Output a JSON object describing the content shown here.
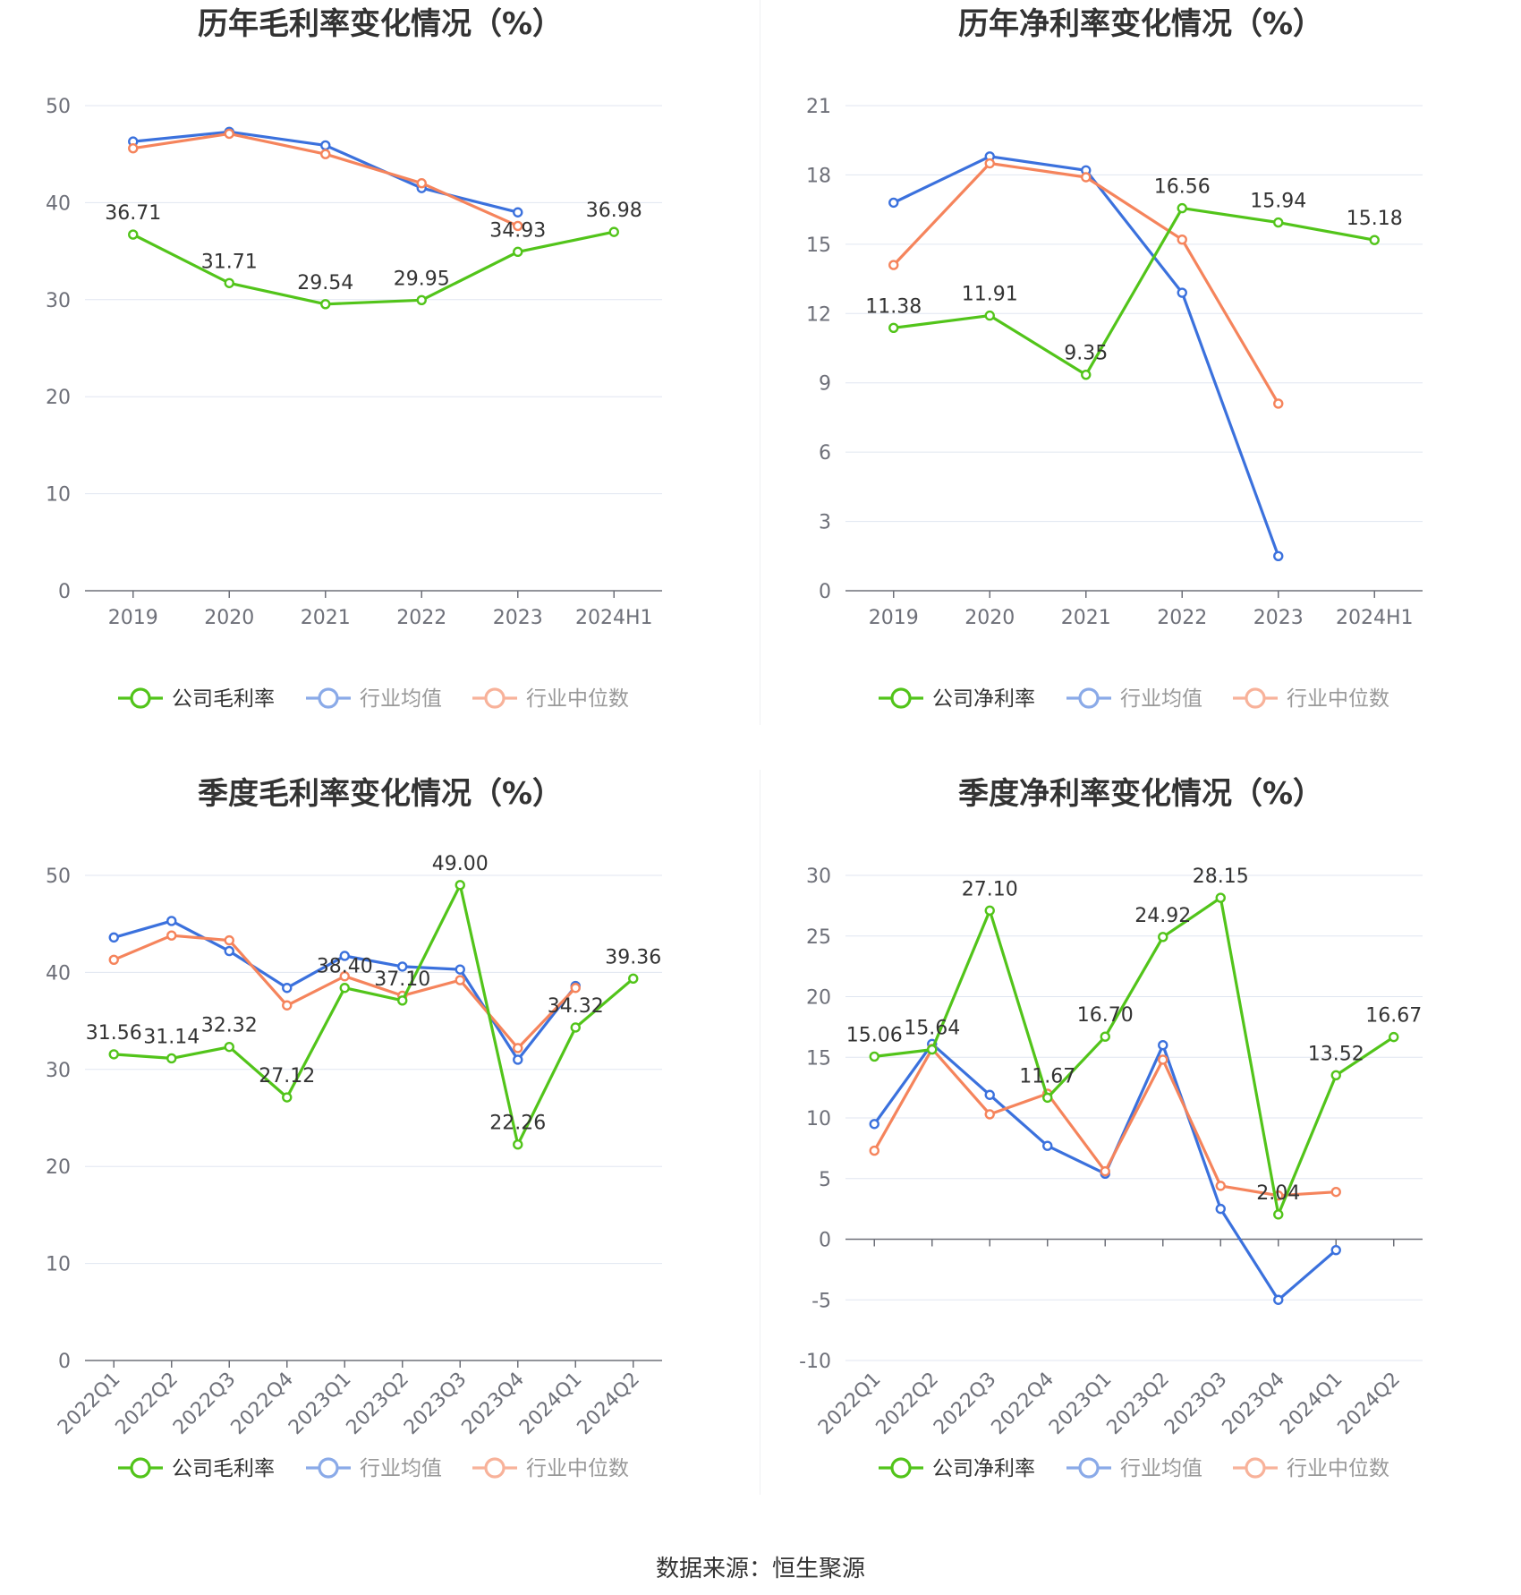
{
  "source": "数据来源：恒生聚源",
  "colors": {
    "company": "#52c41a",
    "avg": "#3b71dd",
    "median": "#f5845c"
  },
  "chart_data": [
    {
      "type": "line",
      "title": "历年毛利率变化情况（%）",
      "categories": [
        "2019",
        "2020",
        "2021",
        "2022",
        "2023",
        "2024H1"
      ],
      "ylim": [
        0,
        50
      ],
      "yticks": [
        0,
        10,
        20,
        30,
        40,
        50
      ],
      "grid": true,
      "legend": "bottom",
      "series": [
        {
          "name": "公司毛利率",
          "values": [
            36.71,
            31.71,
            29.54,
            29.95,
            34.93,
            36.98
          ],
          "labels": [
            "36.71",
            "31.71",
            "29.54",
            "29.95",
            "34.93",
            "36.98"
          ]
        },
        {
          "name": "行业均值",
          "values": [
            46.3,
            47.3,
            45.9,
            41.5,
            39.0,
            null
          ]
        },
        {
          "name": "行业中位数",
          "values": [
            45.6,
            47.1,
            45.0,
            42.0,
            37.6,
            null
          ]
        }
      ]
    },
    {
      "type": "line",
      "title": "历年净利率变化情况（%）",
      "categories": [
        "2019",
        "2020",
        "2021",
        "2022",
        "2023",
        "2024H1"
      ],
      "ylim": [
        0,
        21
      ],
      "yticks": [
        0,
        3,
        6,
        9,
        12,
        15,
        18,
        21
      ],
      "grid": true,
      "legend": "bottom",
      "series": [
        {
          "name": "公司净利率",
          "values": [
            11.38,
            11.91,
            9.35,
            16.56,
            15.94,
            15.18
          ],
          "labels": [
            "11.38",
            "11.91",
            "9.35",
            "16.56",
            "15.94",
            "15.18"
          ]
        },
        {
          "name": "行业均值",
          "values": [
            16.8,
            18.8,
            18.2,
            12.9,
            1.5,
            null
          ]
        },
        {
          "name": "行业中位数",
          "values": [
            14.1,
            18.5,
            17.9,
            15.2,
            8.1,
            null
          ]
        }
      ]
    },
    {
      "type": "line",
      "title": "季度毛利率变化情况（%）",
      "categories": [
        "2022Q1",
        "2022Q2",
        "2022Q3",
        "2022Q4",
        "2023Q1",
        "2023Q2",
        "2023Q3",
        "2023Q4",
        "2024Q1",
        "2024Q2"
      ],
      "ylim": [
        0,
        50
      ],
      "yticks": [
        0,
        10,
        20,
        30,
        40,
        50
      ],
      "grid": true,
      "legend": "bottom",
      "series": [
        {
          "name": "公司毛利率",
          "values": [
            31.56,
            31.14,
            32.32,
            27.12,
            38.4,
            37.1,
            49.0,
            22.26,
            34.32,
            39.36
          ],
          "labels": [
            "31.56",
            "31.14",
            "32.32",
            "27.12",
            "38.40",
            "37.10",
            "49.00",
            "22.26",
            "34.32",
            "39.36"
          ]
        },
        {
          "name": "行业均值",
          "values": [
            43.6,
            45.3,
            42.2,
            38.4,
            41.7,
            40.6,
            40.3,
            31.0,
            38.6,
            null
          ]
        },
        {
          "name": "行业中位数",
          "values": [
            41.3,
            43.8,
            43.3,
            36.6,
            39.6,
            37.6,
            39.2,
            32.2,
            38.4,
            null
          ]
        }
      ]
    },
    {
      "type": "line",
      "title": "季度净利率变化情况（%）",
      "categories": [
        "2022Q1",
        "2022Q2",
        "2022Q3",
        "2022Q4",
        "2023Q1",
        "2023Q2",
        "2023Q3",
        "2023Q4",
        "2024Q1",
        "2024Q2"
      ],
      "ylim": [
        -10,
        30
      ],
      "yticks": [
        -10,
        -5,
        0,
        5,
        10,
        15,
        20,
        25,
        30
      ],
      "grid": true,
      "legend": "bottom",
      "series": [
        {
          "name": "公司净利率",
          "values": [
            15.06,
            15.64,
            27.1,
            11.67,
            16.7,
            24.92,
            28.15,
            2.04,
            13.52,
            16.67
          ],
          "labels": [
            "15.06",
            "15.64",
            "27.10",
            "11.67",
            "16.70",
            "24.92",
            "28.15",
            "2.04",
            "13.52",
            "16.67"
          ]
        },
        {
          "name": "行业均值",
          "values": [
            9.5,
            16.1,
            11.9,
            7.7,
            5.4,
            16.0,
            2.5,
            -5.0,
            -0.9,
            null
          ]
        },
        {
          "name": "行业中位数",
          "values": [
            7.3,
            15.7,
            10.3,
            12.0,
            5.6,
            14.8,
            4.4,
            3.6,
            3.9,
            null
          ]
        }
      ]
    }
  ]
}
